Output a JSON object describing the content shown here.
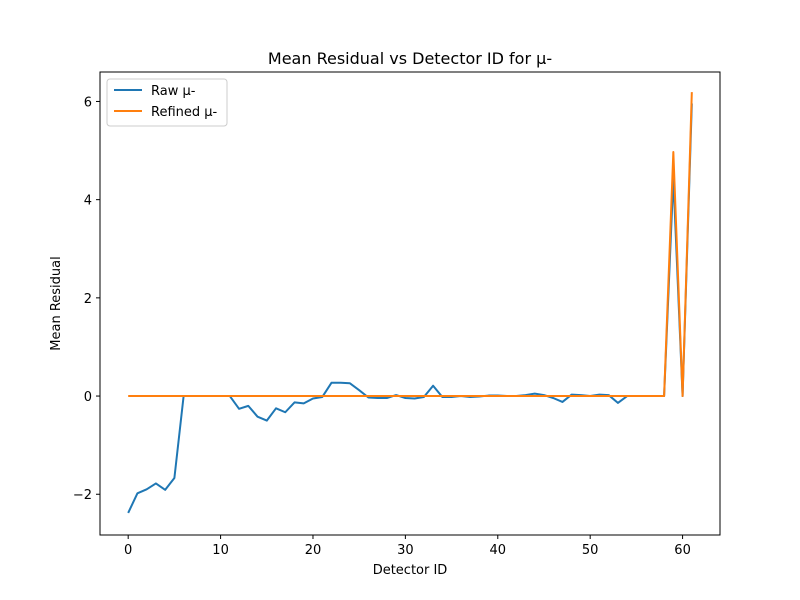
{
  "chart_data": {
    "type": "line",
    "title": "Mean Residual vs Detector ID for μ-",
    "xlabel": "Detector ID",
    "ylabel": "Mean Residual",
    "xlim": [
      -3.05,
      64.05
    ],
    "ylim": [
      -2.83,
      6.6
    ],
    "xticks": [
      0,
      10,
      20,
      30,
      40,
      50,
      60
    ],
    "yticks": [
      -2,
      0,
      2,
      4,
      6
    ],
    "grid": false,
    "legend_position": "upper-left",
    "x": [
      0,
      1,
      2,
      3,
      4,
      5,
      6,
      7,
      8,
      9,
      10,
      11,
      12,
      13,
      14,
      15,
      16,
      17,
      18,
      19,
      20,
      21,
      22,
      23,
      24,
      25,
      26,
      27,
      28,
      29,
      30,
      31,
      32,
      33,
      34,
      35,
      36,
      37,
      38,
      39,
      40,
      41,
      42,
      43,
      44,
      45,
      46,
      47,
      48,
      49,
      50,
      51,
      52,
      53,
      54,
      55,
      56,
      57,
      58,
      59,
      60,
      61
    ],
    "series": [
      {
        "name": "Raw μ-",
        "color": "#1f77b4",
        "values": [
          -2.38,
          -1.98,
          -1.9,
          -1.78,
          -1.91,
          -1.67,
          0,
          0,
          0,
          0,
          0,
          0,
          -0.26,
          -0.2,
          -0.42,
          -0.5,
          -0.25,
          -0.33,
          -0.13,
          -0.15,
          -0.05,
          -0.02,
          0.27,
          0.27,
          0.26,
          0.12,
          -0.03,
          -0.04,
          -0.04,
          0.02,
          -0.04,
          -0.05,
          -0.02,
          0.21,
          -0.02,
          -0.02,
          0,
          -0.02,
          -0.01,
          0.01,
          0.01,
          0,
          0,
          0.02,
          0.05,
          0.02,
          -0.04,
          -0.12,
          0.03,
          0.02,
          0,
          0.03,
          0.02,
          -0.14,
          0,
          0,
          0,
          0,
          0,
          4.45,
          0,
          5.96
        ]
      },
      {
        "name": "Refined μ-",
        "color": "#ff7f0e",
        "values": [
          0,
          0,
          0,
          0,
          0,
          0,
          0,
          0,
          0,
          0,
          0,
          0,
          0,
          0,
          0,
          0,
          0,
          0,
          0,
          0,
          0,
          0,
          0,
          0,
          0,
          0,
          0,
          0,
          0,
          0,
          0,
          0,
          0,
          0,
          0,
          0,
          0,
          0,
          0,
          0,
          0,
          0,
          0,
          0,
          0,
          0,
          0,
          0,
          0,
          0,
          0,
          0,
          0,
          0,
          0,
          0,
          0,
          0,
          0,
          4.97,
          0,
          6.19
        ]
      }
    ]
  }
}
